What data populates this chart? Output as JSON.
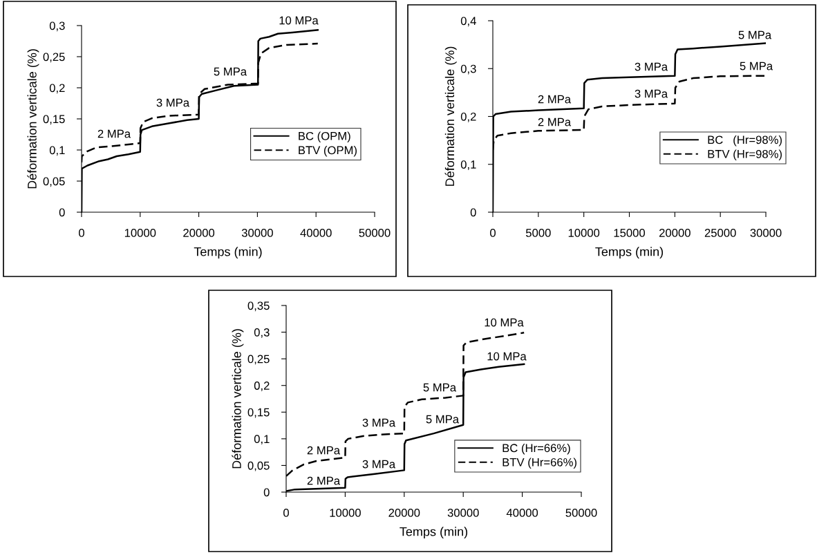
{
  "chart_data": [
    {
      "type": "line",
      "xlabel": "Temps (min)",
      "ylabel": "Déformation verticale (%)",
      "xlim": [
        0,
        50000
      ],
      "ylim": [
        0,
        0.3
      ],
      "xticks": [
        0,
        10000,
        20000,
        30000,
        40000,
        50000
      ],
      "yticks": [
        {
          "value": 0,
          "label": "0"
        },
        {
          "value": 0.05,
          "label": "0,05"
        },
        {
          "value": 0.1,
          "label": "0,1"
        },
        {
          "value": 0.15,
          "label": "0,15"
        },
        {
          "value": 0.2,
          "label": "0,2"
        },
        {
          "value": 0.25,
          "label": "0,25"
        },
        {
          "value": 0.3,
          "label": "0,3"
        }
      ],
      "grid": false,
      "legend": "right",
      "marker": "none",
      "series": [
        {
          "name": "BC (OPM)",
          "color": "#000000",
          "line_style": "solid",
          "x": [
            0,
            50,
            1000,
            3000,
            4500,
            6000,
            8000,
            10000,
            10050,
            10300,
            12000,
            15000,
            18000,
            20000,
            20050,
            20500,
            23000,
            26000,
            30100,
            30150,
            30500,
            32000,
            33500,
            36000,
            40300
          ],
          "values": [
            0,
            0.07,
            0.075,
            0.082,
            0.085,
            0.09,
            0.093,
            0.097,
            0.125,
            0.132,
            0.138,
            0.143,
            0.148,
            0.15,
            0.185,
            0.19,
            0.196,
            0.203,
            0.205,
            0.275,
            0.279,
            0.282,
            0.287,
            0.289,
            0.293
          ]
        },
        {
          "name": "BTV (OPM)",
          "color": "#000000",
          "line_style": "dashed",
          "x": [
            0,
            50,
            1000,
            2500,
            5000,
            8000,
            10000,
            10050,
            10500,
            12000,
            15000,
            20000,
            20050,
            21000,
            25000,
            30100,
            30150,
            30600,
            32000,
            35000,
            40300
          ],
          "values": [
            0.08,
            0.09,
            0.098,
            0.104,
            0.106,
            0.109,
            0.111,
            0.135,
            0.145,
            0.151,
            0.155,
            0.157,
            0.19,
            0.198,
            0.205,
            0.207,
            0.24,
            0.255,
            0.264,
            0.269,
            0.271
          ]
        }
      ],
      "annotations": [
        "2 MPa",
        "3 MPa",
        "5 MPa",
        "10 MPa"
      ]
    },
    {
      "type": "line",
      "xlabel": "Temps (min)",
      "ylabel": "Déformation verticale (%)",
      "xlim": [
        0,
        30000
      ],
      "ylim": [
        0,
        0.4
      ],
      "xticks": [
        0,
        5000,
        10000,
        15000,
        20000,
        25000,
        30000
      ],
      "yticks": [
        {
          "value": 0,
          "label": "0"
        },
        {
          "value": 0.1,
          "label": "0,1"
        },
        {
          "value": 0.2,
          "label": "0,2"
        },
        {
          "value": 0.3,
          "label": "0,3"
        },
        {
          "value": 0.4,
          "label": "0,4"
        }
      ],
      "grid": false,
      "legend": "right",
      "marker": "none",
      "series": [
        {
          "name": "BC   (Hr=98%)",
          "color": "#000000",
          "line_style": "solid",
          "x": [
            0,
            50,
            300,
            2000,
            5000,
            10000,
            10050,
            10400,
            12000,
            15000,
            20000,
            20050,
            20300,
            22000,
            25000,
            30000
          ],
          "values": [
            0,
            0.2,
            0.205,
            0.21,
            0.213,
            0.217,
            0.27,
            0.277,
            0.28,
            0.282,
            0.285,
            0.33,
            0.34,
            0.342,
            0.346,
            0.353
          ]
        },
        {
          "name": "BTV (Hr=98%)",
          "color": "#000000",
          "line_style": "dashed",
          "x": [
            0,
            100,
            500,
            2000,
            5000,
            10000,
            10050,
            10500,
            12000,
            15000,
            20000,
            20050,
            20500,
            22000,
            25000,
            30000
          ],
          "values": [
            0.13,
            0.15,
            0.16,
            0.165,
            0.17,
            0.172,
            0.2,
            0.215,
            0.221,
            0.224,
            0.227,
            0.26,
            0.273,
            0.28,
            0.284,
            0.285
          ]
        }
      ],
      "annotations": [
        "2 MPa",
        "2 MPa",
        "3 MPa",
        "3 MPa",
        "5 MPa",
        "5 MPa"
      ]
    },
    {
      "type": "line",
      "xlabel": "Temps (min)",
      "ylabel": "Déformation verticale (%)",
      "xlim": [
        0,
        50000
      ],
      "ylim": [
        0,
        0.35
      ],
      "xticks": [
        0,
        10000,
        20000,
        30000,
        40000,
        50000
      ],
      "yticks": [
        {
          "value": 0,
          "label": "0"
        },
        {
          "value": 0.05,
          "label": "0,05"
        },
        {
          "value": 0.1,
          "label": "0,1"
        },
        {
          "value": 0.15,
          "label": "0,15"
        },
        {
          "value": 0.2,
          "label": "0,2"
        },
        {
          "value": 0.25,
          "label": "0,25"
        },
        {
          "value": 0.3,
          "label": "0,3"
        },
        {
          "value": 0.35,
          "label": "0,35"
        }
      ],
      "grid": false,
      "legend": "bottom right",
      "marker": "none",
      "series": [
        {
          "name": "BC (Hr=66%)",
          "color": "#000000",
          "line_style": "solid",
          "x": [
            0,
            1500,
            5000,
            10000,
            10050,
            10400,
            15000,
            20000,
            20050,
            20300,
            25000,
            30000,
            30050,
            30400,
            33000,
            36000,
            40300
          ],
          "values": [
            0.002,
            0.005,
            0.006,
            0.008,
            0.025,
            0.028,
            0.034,
            0.041,
            0.09,
            0.097,
            0.11,
            0.126,
            0.215,
            0.225,
            0.23,
            0.235,
            0.24
          ]
        },
        {
          "name": "BTV (Hr=66%)",
          "color": "#000000",
          "line_style": "dashed",
          "x": [
            0,
            1000,
            3000,
            5000,
            8000,
            10000,
            10050,
            10500,
            13000,
            16000,
            20000,
            20050,
            20600,
            23000,
            27000,
            30000,
            30050,
            30600,
            33000,
            37000,
            40300
          ],
          "values": [
            0.03,
            0.04,
            0.052,
            0.058,
            0.062,
            0.065,
            0.095,
            0.1,
            0.105,
            0.108,
            0.11,
            0.16,
            0.168,
            0.174,
            0.177,
            0.181,
            0.275,
            0.281,
            0.286,
            0.293,
            0.299
          ]
        }
      ],
      "annotations": [
        "2 MPa",
        "2 MPa",
        "3 MPa",
        "3 MPa",
        "5 MPa",
        "5 MPa",
        "10 MPa",
        "10 MPa"
      ]
    }
  ]
}
